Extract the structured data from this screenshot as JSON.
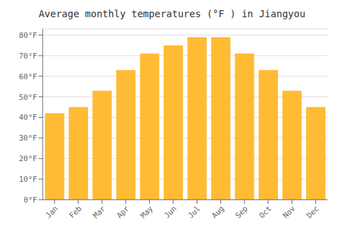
{
  "chart_data": {
    "type": "bar",
    "title": "Average monthly temperatures (°F ) in Jiangyou",
    "categories": [
      "Jan",
      "Feb",
      "Mar",
      "Apr",
      "May",
      "Jun",
      "Jul",
      "Aug",
      "Sep",
      "Oct",
      "Nov",
      "Dec"
    ],
    "values": [
      42,
      45,
      53,
      63,
      71,
      75,
      79,
      79,
      71,
      63,
      53,
      45
    ],
    "color": "#FFBB33",
    "ylim": [
      0,
      83
    ],
    "yticks": [
      {
        "value": 0,
        "label": "0°F"
      },
      {
        "value": 10,
        "label": "10°F"
      },
      {
        "value": 20,
        "label": "20°F"
      },
      {
        "value": 30,
        "label": "30°F"
      },
      {
        "value": 40,
        "label": "40°F"
      },
      {
        "value": 50,
        "label": "50°F"
      },
      {
        "value": 60,
        "label": "60°F"
      },
      {
        "value": 70,
        "label": "70°F"
      },
      {
        "value": 80,
        "label": "80°F"
      }
    ],
    "grid": true
  }
}
